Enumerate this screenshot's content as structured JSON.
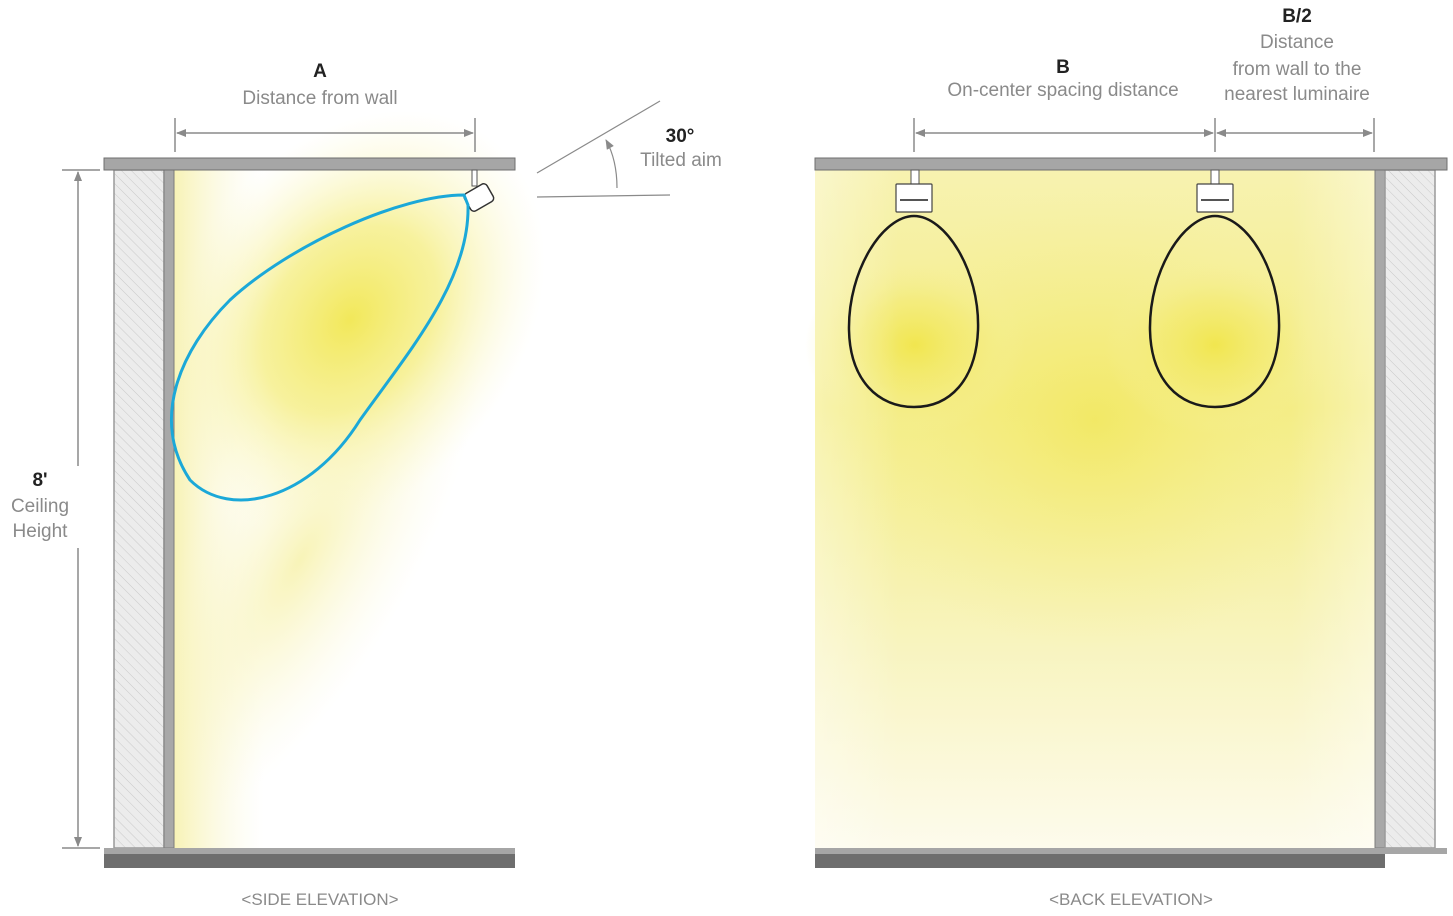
{
  "side": {
    "distance_letter": "A",
    "distance_caption": "Distance from wall",
    "angle_value": "30°",
    "angle_caption": "Tilted aim",
    "height_value": "8'",
    "height_caption_line1": "Ceiling",
    "height_caption_line2": "Height",
    "elevation_caption": "<SIDE ELEVATION>"
  },
  "back": {
    "spacing_letter": "B",
    "spacing_caption": "On-center spacing distance",
    "half_letter": "B/2",
    "half_caption_line1": "Distance",
    "half_caption_line2": "from wall to the",
    "half_caption_line3": "nearest luminaire",
    "elevation_caption": "<BACK ELEVATION>"
  },
  "colors": {
    "light": "#f3ea62",
    "beam_outline_side": "#1ba8d8",
    "beam_outline_back": "#1a1a1a",
    "structure": "#9a9a9a",
    "floor": "#6e6e6e",
    "text_bold": "#222222",
    "text_caption": "#8a8a8a"
  }
}
